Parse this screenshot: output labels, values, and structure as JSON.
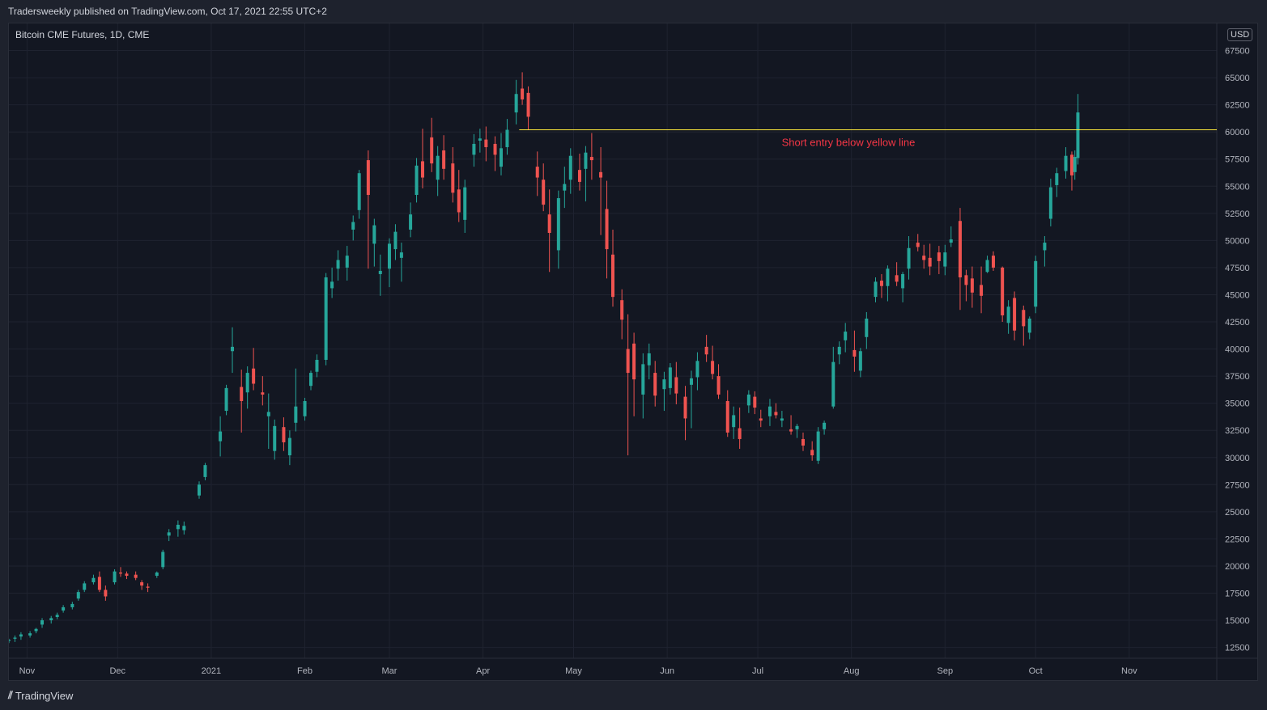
{
  "header": {
    "published": "Tradersweekly published on TradingView.com, Oct 17, 2021 22:55 UTC+2"
  },
  "footer": {
    "brand": "TradingView",
    "brand_icon": "tradingview-logo-icon"
  },
  "chart_data": {
    "type": "candlestick",
    "symbol": "Bitcoin CME Futures, 1D, CME",
    "currency": "USD",
    "colors": {
      "up": "#26a69a",
      "down": "#ef5350",
      "annotation_line": "#ffeb3b",
      "annotation_text": "#f23645",
      "background": "#131722",
      "grid": "#1e222d"
    },
    "grid": true,
    "y_axis": {
      "ticks": [
        12500,
        15000,
        17500,
        20000,
        22500,
        25000,
        27500,
        30000,
        32500,
        35000,
        37500,
        40000,
        42500,
        45000,
        47500,
        50000,
        52500,
        55000,
        57500,
        60000,
        62500,
        65000,
        67500
      ],
      "range": [
        11500,
        70000
      ]
    },
    "x_axis": {
      "labels": [
        "Nov",
        "Dec",
        "2021",
        "Feb",
        "Mar",
        "Apr",
        "May",
        "Jun",
        "Jul",
        "Aug",
        "Sep",
        "Oct",
        "Nov"
      ],
      "label_dates": [
        "2020-11-01",
        "2020-12-01",
        "2021-01-01",
        "2021-02-01",
        "2021-03-01",
        "2021-04-01",
        "2021-05-01",
        "2021-06-01",
        "2021-07-01",
        "2021-08-01",
        "2021-09-01",
        "2021-10-01",
        "2021-11-01"
      ],
      "range": [
        "2020-10-26",
        "2021-11-30"
      ]
    },
    "horizontal_line": {
      "price": 60200,
      "from": "2021-04-13",
      "to": "2021-11-30"
    },
    "annotation": {
      "text": "Short entry below yellow line",
      "date": "2021-07-31",
      "price": 58700
    },
    "candles": [
      [
        "2020-10-26",
        13100,
        13300,
        12900,
        13200
      ],
      [
        "2020-10-28",
        13300,
        13600,
        13000,
        13400
      ],
      [
        "2020-10-30",
        13500,
        13900,
        13200,
        13700
      ],
      [
        "2020-11-02",
        13600,
        14000,
        13400,
        13800
      ],
      [
        "2020-11-04",
        14000,
        14300,
        13800,
        14200
      ],
      [
        "2020-11-06",
        14600,
        15200,
        14300,
        15000
      ],
      [
        "2020-11-09",
        15000,
        15400,
        14700,
        15200
      ],
      [
        "2020-11-11",
        15300,
        15700,
        15100,
        15500
      ],
      [
        "2020-11-13",
        15900,
        16400,
        15700,
        16200
      ],
      [
        "2020-11-16",
        16200,
        16700,
        16000,
        16500
      ],
      [
        "2020-11-18",
        17000,
        17800,
        16800,
        17600
      ],
      [
        "2020-11-20",
        17800,
        18600,
        17600,
        18400
      ],
      [
        "2020-11-23",
        18500,
        19200,
        18300,
        18900
      ],
      [
        "2020-11-25",
        19000,
        19500,
        17600,
        17800
      ],
      [
        "2020-11-27",
        17800,
        18200,
        16800,
        17200
      ],
      [
        "2020-11-30",
        18500,
        19700,
        18300,
        19500
      ],
      [
        "2020-12-02",
        19400,
        19900,
        19000,
        19300
      ],
      [
        "2020-12-04",
        19300,
        19500,
        18800,
        19100
      ],
      [
        "2020-12-07",
        19200,
        19500,
        18700,
        18900
      ],
      [
        "2020-12-09",
        18500,
        18700,
        17800,
        18200
      ],
      [
        "2020-12-11",
        18100,
        18400,
        17600,
        18000
      ],
      [
        "2020-12-14",
        19100,
        19500,
        18900,
        19400
      ],
      [
        "2020-12-16",
        19900,
        21500,
        19700,
        21300
      ],
      [
        "2020-12-18",
        22800,
        23400,
        22300,
        23100
      ],
      [
        "2020-12-21",
        23400,
        24200,
        22700,
        23800
      ],
      [
        "2020-12-23",
        23300,
        24100,
        22900,
        23700
      ],
      [
        "2020-12-28",
        26500,
        27800,
        26200,
        27500
      ],
      [
        "2020-12-30",
        28200,
        29500,
        27900,
        29300
      ],
      [
        "2021-01-04",
        31500,
        33800,
        30100,
        32400
      ],
      [
        "2021-01-06",
        34300,
        36700,
        33900,
        36400
      ],
      [
        "2021-01-08",
        39800,
        42000,
        37800,
        40200
      ],
      [
        "2021-01-11",
        36500,
        38100,
        32300,
        35200
      ],
      [
        "2021-01-13",
        36000,
        38400,
        34500,
        37800
      ],
      [
        "2021-01-15",
        38200,
        40100,
        36200,
        36800
      ],
      [
        "2021-01-18",
        36000,
        37500,
        34800,
        35800
      ],
      [
        "2021-01-20",
        33800,
        35900,
        30800,
        34200
      ],
      [
        "2021-01-22",
        30600,
        33500,
        29800,
        32900
      ],
      [
        "2021-01-25",
        32800,
        33700,
        30600,
        31400
      ],
      [
        "2021-01-27",
        30200,
        32500,
        29300,
        31800
      ],
      [
        "2021-01-29",
        33200,
        38200,
        32400,
        34700
      ],
      [
        "2021-02-01",
        33800,
        35500,
        33400,
        35200
      ],
      [
        "2021-02-03",
        36600,
        38000,
        36200,
        37800
      ],
      [
        "2021-02-05",
        37900,
        39500,
        37400,
        39000
      ],
      [
        "2021-02-08",
        39000,
        47000,
        38500,
        46600
      ],
      [
        "2021-02-10",
        45600,
        47500,
        44700,
        46200
      ],
      [
        "2021-02-12",
        47400,
        49100,
        46300,
        48200
      ],
      [
        "2021-02-15",
        47500,
        49500,
        46300,
        48600
      ],
      [
        "2021-02-17",
        51000,
        52300,
        50000,
        51700
      ],
      [
        "2021-02-19",
        52800,
        56500,
        52000,
        56200
      ],
      [
        "2021-02-22",
        57400,
        58300,
        47400,
        54200
      ],
      [
        "2021-02-24",
        49700,
        52000,
        47600,
        51400
      ],
      [
        "2021-02-26",
        46900,
        48700,
        44900,
        47200
      ],
      [
        "2021-03-01",
        47400,
        50200,
        45700,
        49700
      ],
      [
        "2021-03-03",
        49200,
        51500,
        48200,
        50800
      ],
      [
        "2021-03-05",
        48400,
        49800,
        46200,
        48900
      ],
      [
        "2021-03-08",
        51000,
        53500,
        50300,
        52400
      ],
      [
        "2021-03-10",
        54200,
        57600,
        53500,
        56900
      ],
      [
        "2021-03-12",
        57300,
        60300,
        54800,
        55800
      ],
      [
        "2021-03-15",
        59500,
        61300,
        56300,
        57100
      ],
      [
        "2021-03-17",
        55600,
        58700,
        54100,
        57800
      ],
      [
        "2021-03-19",
        58300,
        59700,
        55600,
        56600
      ],
      [
        "2021-03-22",
        57100,
        58600,
        53500,
        54400
      ],
      [
        "2021-03-24",
        54700,
        56500,
        51700,
        52600
      ],
      [
        "2021-03-26",
        51900,
        55600,
        50700,
        54900
      ],
      [
        "2021-03-29",
        57900,
        59800,
        56800,
        58900
      ],
      [
        "2021-03-31",
        59200,
        60300,
        58100,
        59400
      ],
      [
        "2021-04-02",
        59300,
        60500,
        57300,
        58600
      ],
      [
        "2021-04-05",
        58900,
        59600,
        56400,
        57900
      ],
      [
        "2021-04-07",
        56800,
        59900,
        56000,
        58500
      ],
      [
        "2021-04-09",
        58600,
        61200,
        57900,
        60200
      ],
      [
        "2021-04-12",
        61800,
        64800,
        60700,
        63500
      ],
      [
        "2021-04-14",
        64000,
        65500,
        62500,
        63000
      ],
      [
        "2021-04-16",
        63600,
        64200,
        60200,
        61400
      ],
      [
        "2021-04-19",
        56800,
        58200,
        54100,
        55800
      ],
      [
        "2021-04-21",
        55600,
        57100,
        52700,
        53300
      ],
      [
        "2021-04-23",
        52400,
        54700,
        47100,
        50700
      ],
      [
        "2021-04-26",
        49100,
        54600,
        47400,
        53900
      ],
      [
        "2021-04-28",
        54600,
        56800,
        53000,
        55200
      ],
      [
        "2021-04-30",
        55600,
        58500,
        54300,
        57800
      ],
      [
        "2021-05-03",
        56500,
        58000,
        54600,
        55400
      ],
      [
        "2021-05-05",
        56600,
        58700,
        53600,
        58100
      ],
      [
        "2021-05-07",
        57700,
        59900,
        55600,
        57400
      ],
      [
        "2021-05-10",
        56300,
        58600,
        50500,
        55800
      ],
      [
        "2021-05-12",
        52900,
        55500,
        46500,
        49200
      ],
      [
        "2021-05-14",
        48700,
        51000,
        43900,
        44800
      ],
      [
        "2021-05-17",
        44500,
        45500,
        40900,
        42700
      ],
      [
        "2021-05-19",
        40000,
        43200,
        30200,
        37800
      ],
      [
        "2021-05-21",
        40500,
        41500,
        33800,
        37200
      ],
      [
        "2021-05-24",
        35800,
        39600,
        33600,
        38600
      ],
      [
        "2021-05-26",
        38500,
        40500,
        37200,
        39600
      ],
      [
        "2021-05-28",
        37800,
        38900,
        34700,
        35700
      ],
      [
        "2021-05-31",
        36300,
        37900,
        34300,
        37200
      ],
      [
        "2021-06-02",
        36400,
        38700,
        35800,
        38300
      ],
      [
        "2021-06-04",
        37400,
        38800,
        34900,
        35900
      ],
      [
        "2021-06-07",
        35600,
        36600,
        31600,
        33600
      ],
      [
        "2021-06-09",
        36700,
        38000,
        32700,
        37300
      ],
      [
        "2021-06-11",
        37400,
        39700,
        36200,
        38900
      ],
      [
        "2021-06-14",
        40200,
        41300,
        38800,
        39500
      ],
      [
        "2021-06-16",
        38900,
        40300,
        37200,
        37700
      ],
      [
        "2021-06-18",
        37500,
        38600,
        35400,
        35800
      ],
      [
        "2021-06-21",
        35200,
        36200,
        31900,
        32300
      ],
      [
        "2021-06-23",
        32800,
        34700,
        31700,
        33900
      ],
      [
        "2021-06-25",
        32700,
        34600,
        30800,
        31700
      ],
      [
        "2021-06-28",
        34800,
        36200,
        34100,
        35800
      ],
      [
        "2021-06-30",
        35600,
        36100,
        34000,
        34600
      ],
      [
        "2021-07-02",
        33600,
        34400,
        32800,
        33400
      ],
      [
        "2021-07-05",
        33800,
        35400,
        32900,
        34700
      ],
      [
        "2021-07-07",
        34200,
        35000,
        33600,
        33900
      ],
      [
        "2021-07-09",
        33400,
        34300,
        32800,
        33600
      ],
      [
        "2021-07-12",
        32600,
        33900,
        32100,
        32400
      ],
      [
        "2021-07-14",
        32600,
        33100,
        31800,
        32900
      ],
      [
        "2021-07-16",
        31700,
        32300,
        30600,
        31100
      ],
      [
        "2021-07-19",
        30700,
        31500,
        29700,
        30200
      ],
      [
        "2021-07-21",
        29700,
        32800,
        29400,
        32400
      ],
      [
        "2021-07-23",
        32600,
        33400,
        32100,
        33200
      ],
      [
        "2021-07-26",
        34700,
        40200,
        34500,
        38800
      ],
      [
        "2021-07-28",
        39500,
        40700,
        38600,
        40200
      ],
      [
        "2021-07-30",
        40800,
        42400,
        39700,
        41600
      ],
      [
        "2021-08-02",
        39900,
        41700,
        37900,
        39300
      ],
      [
        "2021-08-04",
        38000,
        40100,
        37400,
        39800
      ],
      [
        "2021-08-06",
        41100,
        43400,
        40000,
        42800
      ],
      [
        "2021-08-09",
        44800,
        46600,
        44300,
        46200
      ],
      [
        "2021-08-11",
        46300,
        46900,
        44700,
        45800
      ],
      [
        "2021-08-13",
        45800,
        47700,
        44400,
        47400
      ],
      [
        "2021-08-16",
        46800,
        48000,
        45800,
        46200
      ],
      [
        "2021-08-18",
        45600,
        47100,
        44300,
        46900
      ],
      [
        "2021-08-20",
        47400,
        50400,
        46400,
        49300
      ],
      [
        "2021-08-23",
        49800,
        50600,
        49000,
        49400
      ],
      [
        "2021-08-25",
        48600,
        49600,
        47400,
        48200
      ],
      [
        "2021-08-27",
        48400,
        49700,
        46800,
        47600
      ],
      [
        "2021-08-30",
        48900,
        49500,
        46900,
        48100
      ],
      [
        "2021-09-01",
        47600,
        49600,
        46800,
        48900
      ],
      [
        "2021-09-03",
        49800,
        51300,
        49400,
        50100
      ],
      [
        "2021-09-06",
        51800,
        53000,
        43600,
        46600
      ],
      [
        "2021-09-08",
        46800,
        47300,
        44400,
        45900
      ],
      [
        "2021-09-10",
        46500,
        47600,
        43800,
        45200
      ],
      [
        "2021-09-13",
        45900,
        47600,
        43300,
        44900
      ],
      [
        "2021-09-15",
        47100,
        48600,
        47000,
        48200
      ],
      [
        "2021-09-17",
        48600,
        49000,
        47200,
        47500
      ],
      [
        "2021-09-20",
        47500,
        47600,
        42500,
        43100
      ],
      [
        "2021-09-22",
        42400,
        44500,
        41400,
        43900
      ],
      [
        "2021-09-24",
        44700,
        45300,
        40800,
        41700
      ],
      [
        "2021-09-27",
        43600,
        44000,
        40300,
        42100
      ],
      [
        "2021-09-29",
        41500,
        43000,
        40900,
        42800
      ],
      [
        "2021-10-01",
        43900,
        48600,
        43300,
        48100
      ],
      [
        "2021-10-04",
        49100,
        50400,
        47600,
        49800
      ],
      [
        "2021-10-06",
        52000,
        55700,
        51300,
        54900
      ],
      [
        "2021-10-08",
        55100,
        56700,
        54000,
        56200
      ],
      [
        "2021-10-11",
        56400,
        58600,
        55700,
        57800
      ],
      [
        "2021-10-13",
        57900,
        58200,
        54600,
        56000
      ],
      [
        "2021-10-14",
        56300,
        58300,
        55600,
        57700
      ],
      [
        "2021-10-15",
        57600,
        63500,
        57000,
        61800
      ]
    ]
  }
}
